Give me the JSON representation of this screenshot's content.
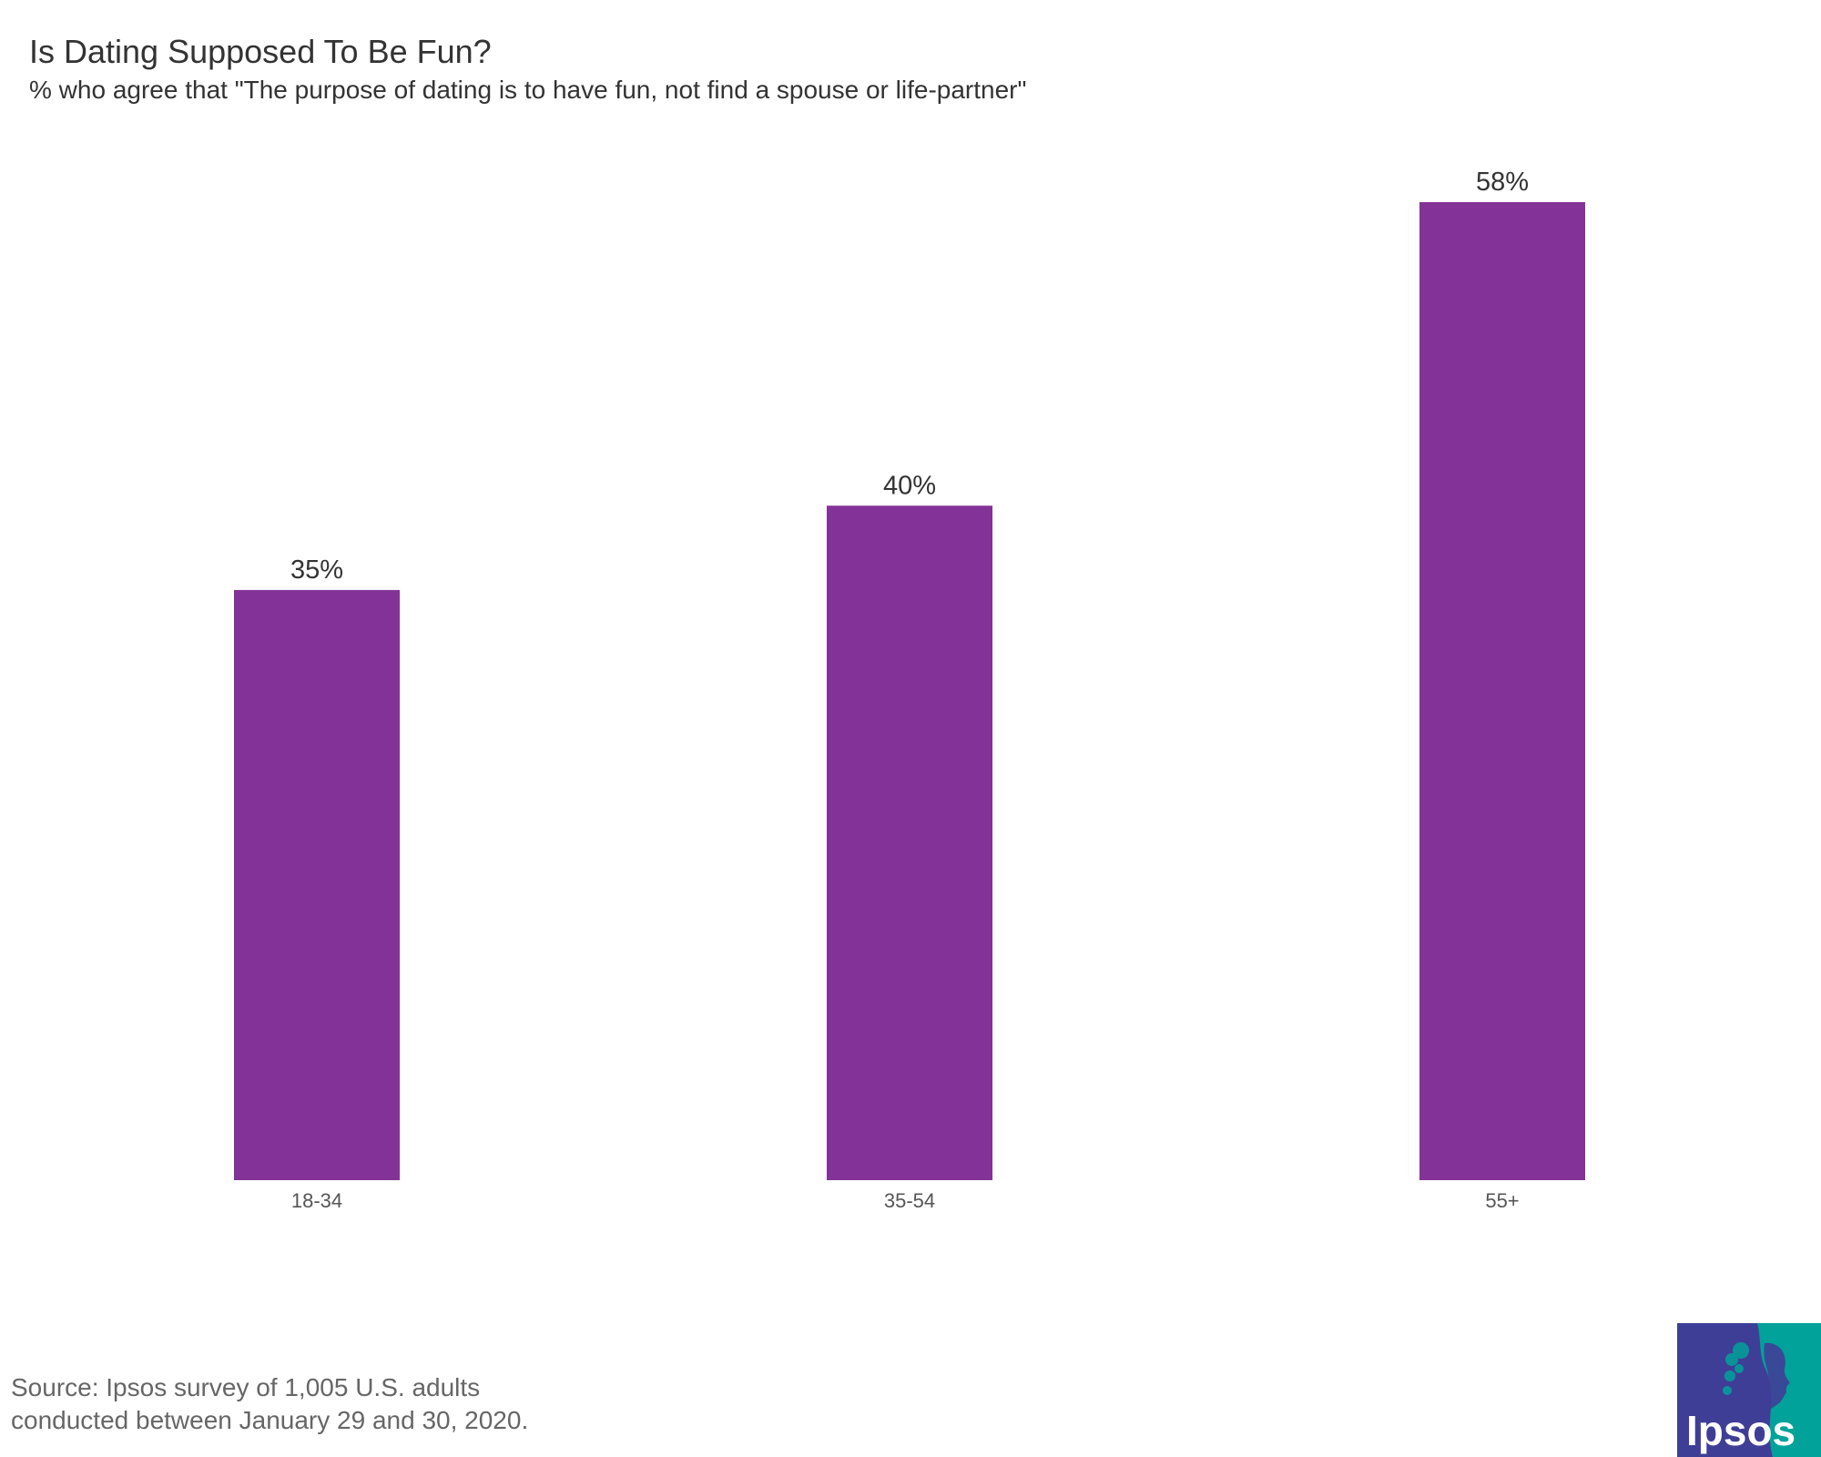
{
  "title": "Is Dating Supposed To Be Fun?",
  "subtitle": "% who agree that \"The purpose of dating is to have fun, not find a spouse or life-partner\"",
  "source": {
    "line1": "Source: Ipsos survey of 1,005 U.S. adults",
    "line2": "conducted between January 29 and 30, 2020."
  },
  "logo": {
    "text": "Ipsos",
    "colors": {
      "left": "#3F3E97",
      "right": "#00A29A",
      "text": "#ffffff"
    }
  },
  "colors": {
    "bar": "#833297",
    "value_label": "#333333",
    "tick_label": "#555555"
  },
  "chart_data": {
    "type": "bar",
    "title": "Is Dating Supposed To Be Fun?",
    "subtitle": "% who agree that \"The purpose of dating is to have fun, not find a spouse or life-partner\"",
    "categories": [
      "18-34",
      "35-54",
      "55+"
    ],
    "values": [
      35,
      40,
      58
    ],
    "value_labels": [
      "35%",
      "40%",
      "58%"
    ],
    "ylim": [
      0,
      58
    ],
    "grid": false,
    "legend": "none",
    "xlabel": "",
    "ylabel": ""
  }
}
